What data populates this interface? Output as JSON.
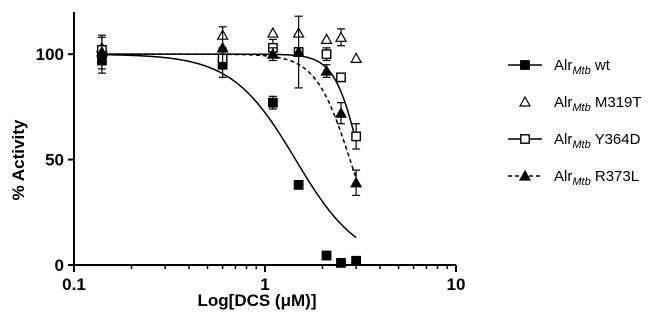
{
  "chart_data": {
    "type": "scatter",
    "xlabel": "Log[DCS (μM)]",
    "ylabel": "% Activity",
    "xscale": "log",
    "xlim": [
      0.1,
      10
    ],
    "ylim": [
      0,
      120
    ],
    "xticks": [
      0.1,
      1,
      10
    ],
    "xtick_labels": [
      "0.1",
      "1",
      "10"
    ],
    "yticks": [
      0,
      50,
      100
    ],
    "ytick_labels": [
      "0",
      "50",
      "100"
    ],
    "grid": false,
    "legend_position": "right",
    "series": [
      {
        "name": "wt",
        "legend_prefix": "Alr",
        "legend_subscript": "Mtb",
        "legend_suffix": " wt",
        "marker": "filled-square",
        "line": "solid",
        "color": "#000000",
        "x": [
          0.14,
          0.6,
          1.1,
          1.5,
          2.1,
          2.5,
          3.0
        ],
        "y": [
          97,
          95,
          77,
          38,
          4.5,
          1,
          2
        ],
        "error": [
          6,
          6,
          3,
          0,
          0,
          0,
          0
        ],
        "fit": {
          "top": 100,
          "bottom": 0,
          "logIC50": 0.16,
          "hill": -2.6
        }
      },
      {
        "name": "M319T",
        "legend_prefix": "Alr",
        "legend_subscript": "Mtb",
        "legend_suffix": " M319T",
        "marker": "open-triangle",
        "line": "none",
        "color": "#000000",
        "x": [
          0.14,
          0.6,
          1.1,
          1.5,
          2.1,
          2.5,
          3.0
        ],
        "y": [
          103,
          109,
          110,
          110,
          107,
          108,
          98
        ],
        "error": [
          0,
          0,
          0,
          0,
          0,
          4,
          0
        ]
      },
      {
        "name": "Y364D",
        "legend_prefix": "Alr",
        "legend_subscript": "Mtb",
        "legend_suffix": " Y364D",
        "marker": "open-square",
        "line": "solid",
        "color": "#000000",
        "x": [
          0.14,
          0.6,
          1.1,
          1.5,
          2.1,
          2.5,
          3.0
        ],
        "y": [
          102,
          98,
          103,
          101,
          100,
          89,
          61
        ],
        "error": [
          6,
          5,
          4,
          17,
          3,
          2,
          6
        ],
        "fit": {
          "top": 100,
          "bottom": 0,
          "logIC50": 0.5,
          "hill": -6.5
        }
      },
      {
        "name": "R373L",
        "legend_prefix": "Alr",
        "legend_subscript": "Mtb",
        "legend_suffix": " R373L",
        "marker": "filled-triangle",
        "line": "dashed",
        "color": "#000000",
        "x": [
          0.14,
          0.6,
          1.1,
          1.5,
          2.1,
          2.5,
          3.0
        ],
        "y": [
          101,
          103,
          100,
          101,
          92,
          72,
          39
        ],
        "error": [
          8,
          10,
          3,
          2,
          3,
          5,
          6
        ],
        "fit": {
          "top": 100,
          "bottom": 0,
          "logIC50": 0.445,
          "hill": -4.8
        }
      }
    ]
  }
}
